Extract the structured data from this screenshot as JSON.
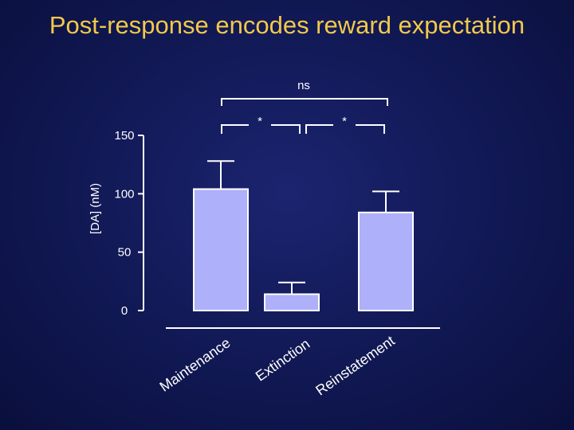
{
  "title": "Post-response encodes reward expectation",
  "chart_data": {
    "type": "bar",
    "categories": [
      "Maintenance",
      "Extinction",
      "Reinstatement"
    ],
    "values": [
      104,
      14,
      84
    ],
    "errors": [
      24,
      10,
      18
    ],
    "ylabel": "[DA] (nM)",
    "xlabel": "",
    "ylim": [
      0,
      150
    ],
    "yticks": [
      0,
      50,
      100,
      150
    ],
    "bar_color": "#aeb0fa",
    "annotations": {
      "ns": "ns",
      "star_left": "*",
      "star_right": "*"
    }
  }
}
